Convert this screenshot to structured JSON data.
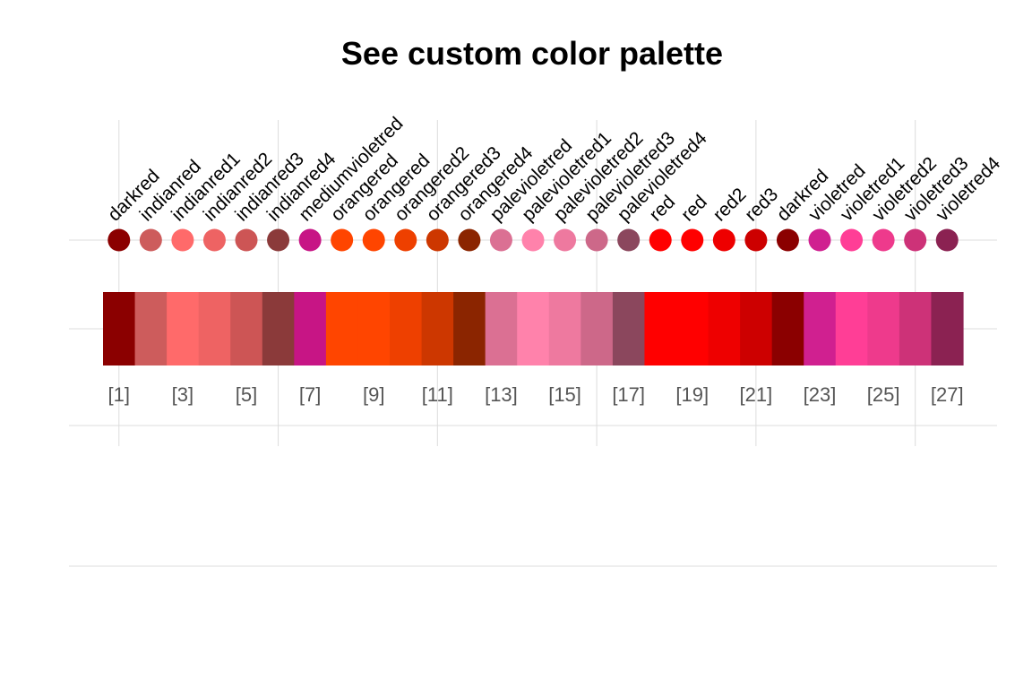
{
  "chart_data": {
    "type": "palette",
    "title": "See custom color palette",
    "names": [
      "darkred",
      "indianred",
      "indianred1",
      "indianred2",
      "indianred3",
      "indianred4",
      "mediumvioletred",
      "orangered",
      "orangered",
      "orangered2",
      "orangered3",
      "orangered4",
      "palevioletred",
      "palevioletred1",
      "palevioletred2",
      "palevioletred3",
      "palevioletred4",
      "red",
      "red",
      "red2",
      "red3",
      "darkred",
      "violetred",
      "violetred1",
      "violetred2",
      "violetred3",
      "violetred4"
    ],
    "colors": [
      "#8B0000",
      "#CD5C5C",
      "#FF6A6A",
      "#EE6363",
      "#CD5555",
      "#8B3A3A",
      "#C71585",
      "#FF4500",
      "#FF4500",
      "#EE4000",
      "#CD3700",
      "#8B2500",
      "#DB7093",
      "#FF82AB",
      "#EE799F",
      "#CD6889",
      "#8B475D",
      "#FF0000",
      "#FF0000",
      "#EE0000",
      "#CD0000",
      "#8B0000",
      "#D02090",
      "#FF3E96",
      "#EE3A8C",
      "#CD3278",
      "#8B2252"
    ],
    "index_labels": [
      "[1]",
      "[3]",
      "[5]",
      "[7]",
      "[9]",
      "[11]",
      "[13]",
      "[15]",
      "[17]",
      "[19]",
      "[21]",
      "[23]",
      "[25]",
      "[27]"
    ],
    "index_positions": [
      1,
      3,
      5,
      7,
      9,
      11,
      13,
      15,
      17,
      19,
      21,
      23,
      25,
      27
    ],
    "grid": true
  }
}
